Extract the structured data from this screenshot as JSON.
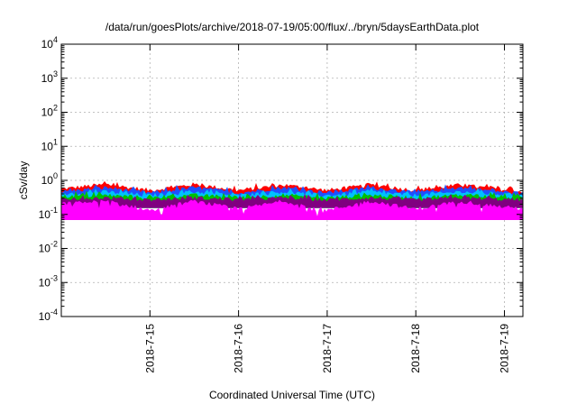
{
  "chart_data": {
    "type": "area",
    "title": "/data/run/goesPlots/archive/2018-07-19/05:00/flux/../bryn/5daysEarthData.plot",
    "xlabel": "Coordinated Universal Time (UTC)",
    "ylabel": "cSv/day",
    "yscale": "log",
    "ylim": [
      0.0001,
      10000
    ],
    "y_ticks": [
      {
        "base": "10",
        "exp": "-4",
        "value": 0.0001
      },
      {
        "base": "10",
        "exp": "-3",
        "value": 0.001
      },
      {
        "base": "10",
        "exp": "-2",
        "value": 0.01
      },
      {
        "base": "10",
        "exp": "-1",
        "value": 0.1
      },
      {
        "base": "10",
        "exp": "0",
        "value": 1
      },
      {
        "base": "10",
        "exp": "1",
        "value": 10
      },
      {
        "base": "10",
        "exp": "2",
        "value": 100
      },
      {
        "base": "10",
        "exp": "3",
        "value": 1000
      },
      {
        "base": "10",
        "exp": "4",
        "value": 10000
      }
    ],
    "xlim": [
      "2018-07-14 00:00",
      "2018-07-19 05:00"
    ],
    "x_ticks": [
      "2018-7-15",
      "2018-7-16",
      "2018-7-17",
      "2018-7-18",
      "2018-7-19"
    ],
    "grid": true,
    "series": [
      {
        "color": "#ff0000",
        "x": [
          "2018-07-14 00:00",
          "2018-07-14 12:00",
          "2018-07-15 00:00",
          "2018-07-15 12:00",
          "2018-07-16 00:00",
          "2018-07-16 12:00",
          "2018-07-17 00:00",
          "2018-07-17 12:00",
          "2018-07-18 00:00",
          "2018-07-18 12:00",
          "2018-07-19 00:00",
          "2018-07-19 05:00"
        ],
        "y": [
          0.55,
          0.75,
          0.5,
          0.75,
          0.5,
          0.72,
          0.5,
          0.72,
          0.5,
          0.72,
          0.52,
          0.45
        ]
      },
      {
        "color": "#1f4fff",
        "x": [
          "2018-07-14 00:00",
          "2018-07-14 12:00",
          "2018-07-15 00:00",
          "2018-07-15 12:00",
          "2018-07-16 00:00",
          "2018-07-16 12:00",
          "2018-07-17 00:00",
          "2018-07-17 12:00",
          "2018-07-18 00:00",
          "2018-07-18 12:00",
          "2018-07-19 00:00",
          "2018-07-19 05:00"
        ],
        "y": [
          0.45,
          0.6,
          0.42,
          0.6,
          0.42,
          0.6,
          0.42,
          0.6,
          0.42,
          0.6,
          0.45,
          0.4
        ]
      },
      {
        "color": "#00c0ff",
        "x": [
          "2018-07-14 00:00",
          "2018-07-14 12:00",
          "2018-07-15 00:00",
          "2018-07-15 12:00",
          "2018-07-16 00:00",
          "2018-07-16 12:00",
          "2018-07-17 00:00",
          "2018-07-17 12:00",
          "2018-07-18 00:00",
          "2018-07-18 12:00",
          "2018-07-19 00:00",
          "2018-07-19 05:00"
        ],
        "y": [
          0.38,
          0.45,
          0.35,
          0.45,
          0.35,
          0.45,
          0.35,
          0.45,
          0.35,
          0.45,
          0.38,
          0.35
        ]
      },
      {
        "color": "#00c000",
        "x": [
          "2018-07-14 00:00",
          "2018-07-14 12:00",
          "2018-07-15 00:00",
          "2018-07-15 12:00",
          "2018-07-16 00:00",
          "2018-07-16 12:00",
          "2018-07-17 00:00",
          "2018-07-17 12:00",
          "2018-07-18 00:00",
          "2018-07-18 12:00",
          "2018-07-19 00:00",
          "2018-07-19 05:00"
        ],
        "y": [
          0.33,
          0.36,
          0.3,
          0.36,
          0.3,
          0.36,
          0.3,
          0.36,
          0.3,
          0.36,
          0.32,
          0.3
        ]
      },
      {
        "color": "#800080",
        "x": [
          "2018-07-14 00:00",
          "2018-07-14 12:00",
          "2018-07-15 00:00",
          "2018-07-15 12:00",
          "2018-07-16 00:00",
          "2018-07-16 12:00",
          "2018-07-17 00:00",
          "2018-07-17 12:00",
          "2018-07-18 00:00",
          "2018-07-18 12:00",
          "2018-07-19 00:00",
          "2018-07-19 05:00"
        ],
        "y": [
          0.28,
          0.3,
          0.26,
          0.3,
          0.26,
          0.3,
          0.26,
          0.3,
          0.26,
          0.3,
          0.27,
          0.26
        ]
      },
      {
        "color": "#ff00ff",
        "x": [
          "2018-07-14 00:00",
          "2018-07-14 12:00",
          "2018-07-15 00:00",
          "2018-07-15 12:00",
          "2018-07-16 00:00",
          "2018-07-16 12:00",
          "2018-07-17 00:00",
          "2018-07-17 12:00",
          "2018-07-18 00:00",
          "2018-07-18 12:00",
          "2018-07-19 00:00",
          "2018-07-19 05:00"
        ],
        "y": [
          0.2,
          0.24,
          0.13,
          0.24,
          0.14,
          0.24,
          0.13,
          0.24,
          0.14,
          0.24,
          0.16,
          0.15
        ]
      }
    ]
  }
}
